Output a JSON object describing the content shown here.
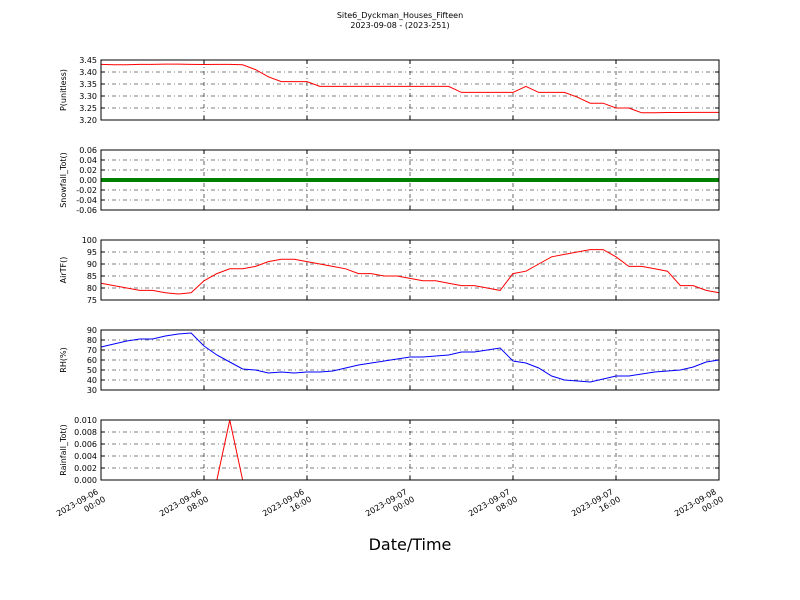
{
  "title": "Site6_Dyckman_Houses_Fifteen",
  "subtitle": "2023-09-08 - (2023-251)",
  "xlabel": "Date/Time",
  "xlim": [
    "2023-09-06 00:00",
    "2023-09-08 00:00"
  ],
  "xticks": [
    "2023-09-06 00:00",
    "2023-09-06 08:00",
    "2023-09-06 16:00",
    "2023-09-07 00:00",
    "2023-09-07 08:00",
    "2023-09-07 16:00",
    "2023-09-08 00:00"
  ],
  "x": [
    "2023-09-06 00:00",
    "2023-09-06 01:00",
    "2023-09-06 02:00",
    "2023-09-06 03:00",
    "2023-09-06 04:00",
    "2023-09-06 05:00",
    "2023-09-06 06:00",
    "2023-09-06 07:00",
    "2023-09-06 08:00",
    "2023-09-06 09:00",
    "2023-09-06 10:00",
    "2023-09-06 11:00",
    "2023-09-06 12:00",
    "2023-09-06 13:00",
    "2023-09-06 14:00",
    "2023-09-06 15:00",
    "2023-09-06 16:00",
    "2023-09-06 17:00",
    "2023-09-06 18:00",
    "2023-09-06 19:00",
    "2023-09-06 20:00",
    "2023-09-06 21:00",
    "2023-09-06 22:00",
    "2023-09-06 23:00",
    "2023-09-07 00:00",
    "2023-09-07 01:00",
    "2023-09-07 02:00",
    "2023-09-07 03:00",
    "2023-09-07 04:00",
    "2023-09-07 05:00",
    "2023-09-07 06:00",
    "2023-09-07 07:00",
    "2023-09-07 08:00",
    "2023-09-07 09:00",
    "2023-09-07 10:00",
    "2023-09-07 11:00",
    "2023-09-07 12:00",
    "2023-09-07 13:00",
    "2023-09-07 14:00",
    "2023-09-07 15:00",
    "2023-09-07 16:00",
    "2023-09-07 17:00",
    "2023-09-07 18:00",
    "2023-09-07 19:00",
    "2023-09-07 20:00",
    "2023-09-07 21:00",
    "2023-09-07 22:00",
    "2023-09-07 23:00",
    "2023-09-08 00:00"
  ],
  "chart_data": [
    {
      "type": "line",
      "ylabel": "P(unitless)",
      "color": "#ff0000",
      "grid": true,
      "ylim": [
        3.2,
        3.45
      ],
      "yticks": [
        {
          "value": 3.2,
          "label": "3.20"
        },
        3.25,
        {
          "value": 3.3,
          "label": "3.30"
        },
        3.35,
        {
          "value": 3.4,
          "label": "3.40"
        },
        3.45
      ],
      "values": [
        3.432,
        3.43,
        3.43,
        3.432,
        3.432,
        3.433,
        3.433,
        3.432,
        3.431,
        3.432,
        3.432,
        3.43,
        3.41,
        3.38,
        3.36,
        3.36,
        3.36,
        3.34,
        3.34,
        3.34,
        3.34,
        3.34,
        3.34,
        3.34,
        3.34,
        3.34,
        3.34,
        3.34,
        3.315,
        3.315,
        3.315,
        3.315,
        3.315,
        3.34,
        3.315,
        3.315,
        3.315,
        3.295,
        3.27,
        3.27,
        3.25,
        3.25,
        3.23,
        3.23,
        3.231,
        3.231,
        3.232,
        3.232,
        3.232
      ]
    },
    {
      "type": "line",
      "ylabel": "Snowfall_Tot()",
      "color": "#008000",
      "grid": true,
      "ylim": [
        -0.06,
        0.06
      ],
      "yticks": [
        -0.06,
        -0.04,
        -0.02,
        {
          "value": 0,
          "label": "0.00"
        },
        0.02,
        0.04,
        0.06
      ],
      "values": [
        0,
        0,
        0,
        0,
        0,
        0,
        0,
        0,
        0,
        0,
        0,
        0,
        0,
        0,
        0,
        0,
        0,
        0,
        0,
        0,
        0,
        0,
        0,
        0,
        0,
        0,
        0,
        0,
        0,
        0,
        0,
        0,
        0,
        0,
        0,
        0,
        0,
        0,
        0,
        0,
        0,
        0,
        0,
        0,
        0,
        0,
        0,
        0,
        0
      ]
    },
    {
      "type": "line",
      "ylabel": "AirTF()",
      "color": "#ff0000",
      "grid": true,
      "ylim": [
        75,
        100
      ],
      "yticks": [
        75,
        80,
        85,
        90,
        95,
        100
      ],
      "values": [
        82,
        81,
        80,
        79,
        79,
        78,
        77.5,
        78,
        83,
        86,
        88,
        88,
        89,
        91,
        92,
        92,
        91,
        90,
        89,
        88,
        86,
        86,
        85,
        85,
        84,
        83,
        83,
        82,
        81,
        81,
        80,
        79,
        86,
        87,
        90,
        93,
        94,
        95,
        96,
        96,
        93,
        89,
        89,
        88,
        87,
        81,
        81,
        79,
        78
      ]
    },
    {
      "type": "line",
      "ylabel": "RH(%)",
      "color": "#0000ff",
      "grid": true,
      "ylim": [
        30,
        90
      ],
      "yticks": [
        30,
        40,
        50,
        60,
        70,
        80,
        90
      ],
      "values": [
        73,
        76,
        79,
        81,
        81,
        84,
        86,
        87,
        74,
        65,
        58,
        51,
        50,
        47,
        48,
        47,
        48,
        48,
        49,
        52,
        55,
        57,
        59,
        61,
        63,
        63,
        64,
        65,
        68,
        68,
        70,
        72,
        59,
        57,
        52,
        44,
        40,
        39,
        38,
        41,
        44,
        44,
        46,
        48,
        49,
        50,
        53,
        58,
        60
      ]
    },
    {
      "type": "line",
      "ylabel": "Rainfall_Tot()",
      "color": "#ff0000",
      "grid": true,
      "ylim": [
        0,
        0.01
      ],
      "yticks": [
        {
          "value": 0,
          "label": "0.000"
        },
        {
          "value": 0.002,
          "label": "0.002"
        },
        {
          "value": 0.004,
          "label": "0.004"
        },
        {
          "value": 0.006,
          "label": "0.006"
        },
        {
          "value": 0.008,
          "label": "0.008"
        },
        {
          "value": 0.01,
          "label": "0.010"
        }
      ],
      "values": [
        0,
        0,
        0,
        0,
        0,
        0,
        0,
        0,
        0,
        0,
        0.01,
        0,
        0,
        0,
        0,
        0,
        0,
        0,
        0,
        0,
        0,
        0,
        0,
        0,
        0,
        0,
        0,
        0,
        0,
        0,
        0,
        0,
        0,
        0,
        0,
        0,
        0,
        0,
        0,
        0,
        0,
        0,
        0,
        0,
        0,
        0,
        0,
        0,
        0
      ]
    }
  ]
}
